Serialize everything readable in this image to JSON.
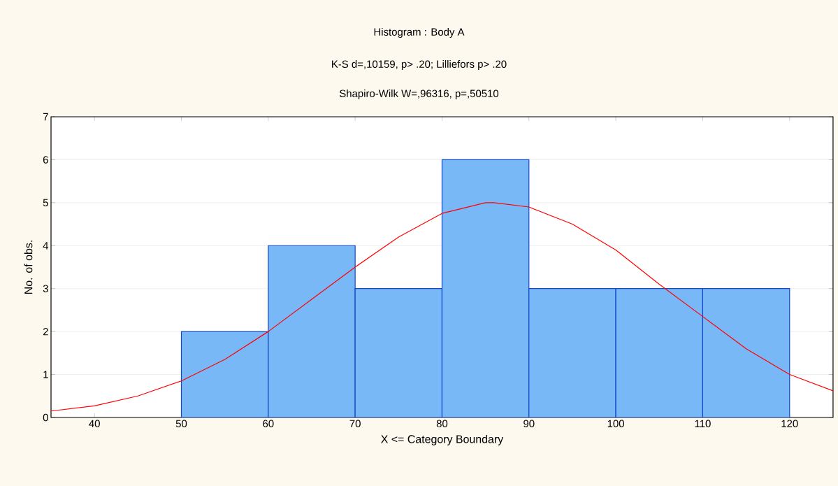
{
  "chart_data": {
    "type": "histogram",
    "title": "Histogram : Body A",
    "subtitle": "K-S d=,10159, p> .20; Lilliefors p> .20",
    "annotations": [
      "Shapiro-Wilk W=,96316, p=,50510"
    ],
    "xlabel": "X <= Category Boundary",
    "ylabel": "No. of obs.",
    "series": [
      {
        "bins": [
          50,
          60,
          70,
          80,
          90,
          100,
          110,
          120
        ],
        "values": [
          2,
          4,
          3,
          6,
          3,
          3,
          3
        ],
        "color": "#79b8f7"
      },
      {
        "type": "line",
        "color": "#ff0000",
        "x": [
          35,
          40,
          45,
          50,
          55,
          60,
          65,
          70,
          75,
          80,
          85,
          86,
          90,
          95,
          100,
          105,
          110,
          115,
          120,
          125
        ],
        "values": [
          0.15,
          0.27,
          0.5,
          0.85,
          1.35,
          2.0,
          2.75,
          3.5,
          4.2,
          4.75,
          5.0,
          5.0,
          4.9,
          4.5,
          3.9,
          3.1,
          2.35,
          1.6,
          1.0,
          0.62
        ]
      }
    ],
    "xlim": [
      35,
      125
    ],
    "ylim": [
      0,
      7
    ],
    "xticks": [
      40,
      50,
      60,
      70,
      80,
      90,
      100,
      110,
      120
    ],
    "yticks": [
      0,
      1,
      2,
      3,
      4,
      5,
      6,
      7
    ],
    "grid": "y"
  }
}
